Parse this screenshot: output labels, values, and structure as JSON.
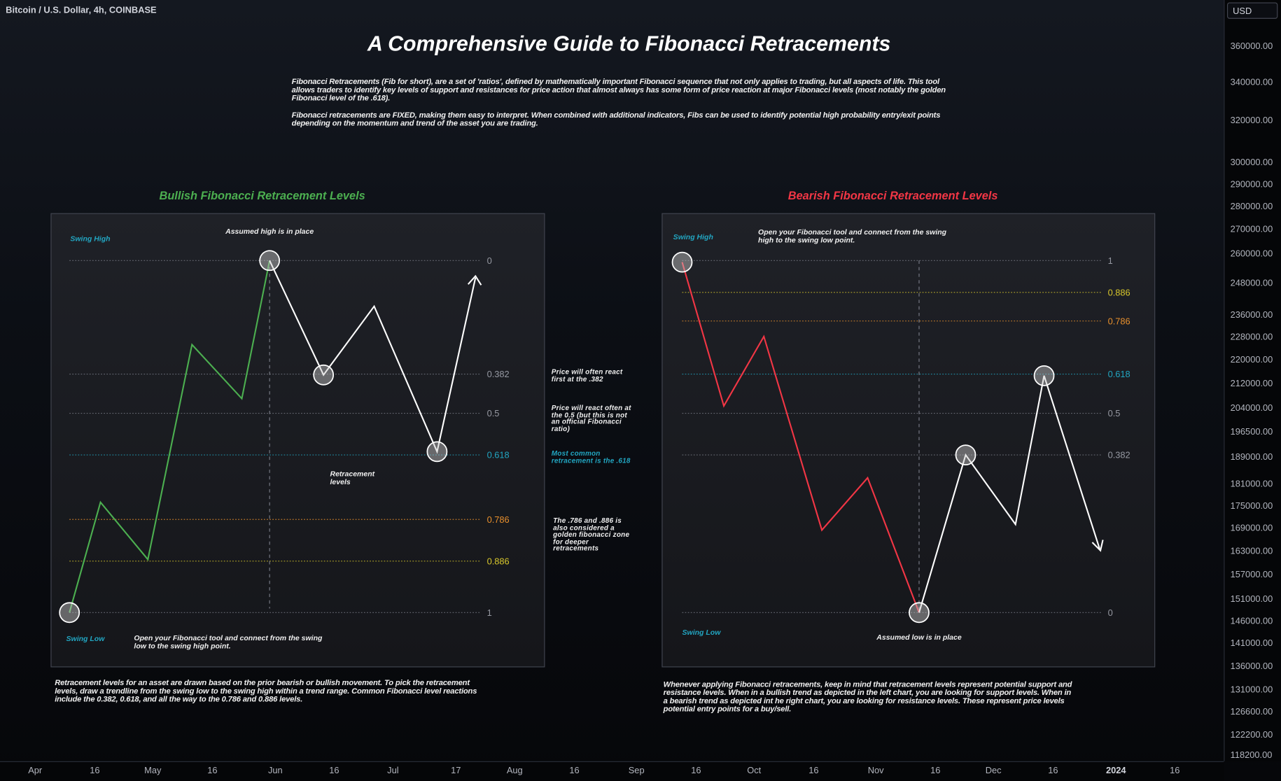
{
  "header": {
    "symbol": "Bitcoin / U.S. Dollar, 4h, COINBASE",
    "currency": "USD"
  },
  "title": "A Comprehensive Guide to Fibonacci Retracements",
  "intro": [
    "Fibonacci Retracements (Fib for short), are a set of 'ratios', defined by mathematically important Fibonacci sequence that not only applies to trading, but all aspects of life. This tool allows traders to identify key levels of support and resistances for price action that almost always has some form of price reaction at major Fibonacci levels (most notably the golden Fibonacci level of the .618).",
    "Fibonacci retracements are FIXED, making them easy to interpret. When combined with additional indicators, Fibs can be used to identify potential high probability entry/exit points depending on the momentum and trend of the asset you are trading."
  ],
  "colors": {
    "bullish": "#4caf50",
    "bearish": "#f23645",
    "teal": "#22a6c2",
    "orange": "#e8902d",
    "yellow": "#d8c72c",
    "gray": "#787b86"
  },
  "bullish": {
    "heading": "Bullish Fibonacci Retracement Levels",
    "swing_high": "Swing High",
    "swing_low": "Swing Low",
    "assumed": "Assumed high is in place",
    "retracement": "Retracement levels",
    "instruction": "Open your Fibonacci tool and connect from the swing low to the swing high point.",
    "levels": [
      "0",
      "0.382",
      "0.5",
      "0.618",
      "0.786",
      "0.886",
      "1"
    ],
    "caption": "Retracement levels for an asset are drawn based on the prior bearish or bullish movement. To pick the retracement levels, draw a trendline from the swing low to the swing high within a trend range. Common Fibonacci level reactions include the 0.382, 0.618, and all the way to the 0.786 and 0.886 levels."
  },
  "bearish": {
    "heading": "Bearish Fibonacci Retracement Levels",
    "swing_high": "Swing High",
    "swing_low": "Swing Low",
    "assumed": "Assumed low is in place",
    "instruction": "Open your Fibonacci tool and connect from the swing high to the swing low point.",
    "levels": [
      "1",
      "0.886",
      "0.786",
      "0.618",
      "0.5",
      "0.382",
      "0"
    ],
    "caption": "Whenever applying Fibonacci retracements, keep in mind that retracement levels represent potential support and resistance levels. When in a bullish trend as depicted in the left chart, you are looking for support levels. When in a bearish trend as depicted int he right chart, you are looking for resistance levels. These represent price levels potential entry points for a buy/sell."
  },
  "notes": [
    "Price will often react first at the .382",
    "Price will react often at the 0.5 (but this is not an official Fibonacci ratio)",
    "Most common retracement is the .618",
    "The .786 and .886 is also considered a golden fibonacci zone for deeper retracements"
  ],
  "price_axis": [
    "360000.00",
    "340000.00",
    "320000.00",
    "300000.00",
    "290000.00",
    "280000.00",
    "270000.00",
    "260000.00",
    "248000.00",
    "236000.00",
    "228000.00",
    "220000.00",
    "212000.00",
    "204000.00",
    "196500.00",
    "189000.00",
    "181000.00",
    "175000.00",
    "169000.00",
    "163000.00",
    "157000.00",
    "151000.00",
    "146000.00",
    "141000.00",
    "136000.00",
    "131000.00",
    "126600.00",
    "122200.00",
    "118200.00"
  ],
  "time_axis": [
    "Apr",
    "16",
    "May",
    "16",
    "Jun",
    "16",
    "Jul",
    "17",
    "Aug",
    "16",
    "Sep",
    "16",
    "Oct",
    "16",
    "Nov",
    "16",
    "Dec",
    "16",
    "2024",
    "16"
  ]
}
